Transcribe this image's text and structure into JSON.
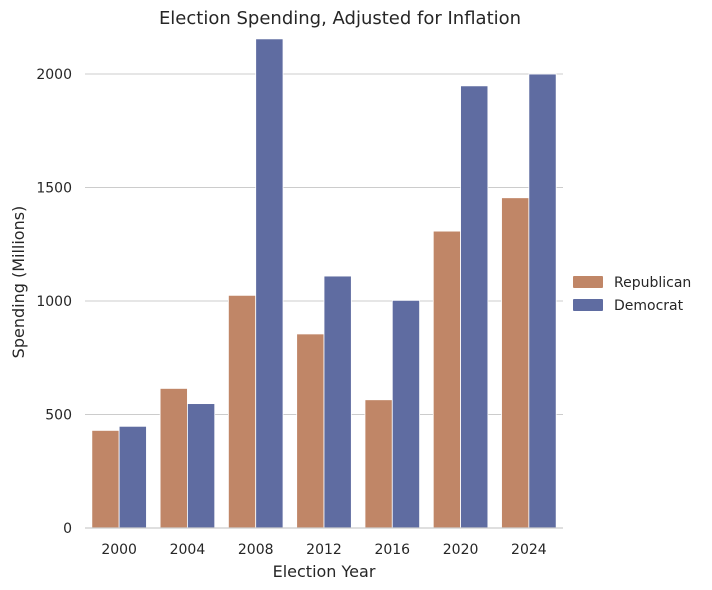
{
  "chart_data": {
    "type": "bar",
    "title": "Election Spending, Adjusted for Inflation",
    "xlabel": "Election Year",
    "ylabel": "Spending (Millions)",
    "categories": [
      "2000",
      "2004",
      "2008",
      "2012",
      "2016",
      "2020",
      "2024"
    ],
    "series": [
      {
        "name": "Republican",
        "color": "#c08667",
        "values": [
          430,
          615,
          1025,
          855,
          565,
          1308,
          1455
        ]
      },
      {
        "name": "Democrat",
        "color": "#5f6ca1",
        "values": [
          448,
          548,
          2155,
          1110,
          1003,
          1948,
          2000
        ]
      }
    ],
    "ylim": [
      0,
      2150
    ],
    "yticks": [
      0,
      500,
      1000,
      1500,
      2000
    ],
    "grid": true,
    "legend_position": "right"
  }
}
